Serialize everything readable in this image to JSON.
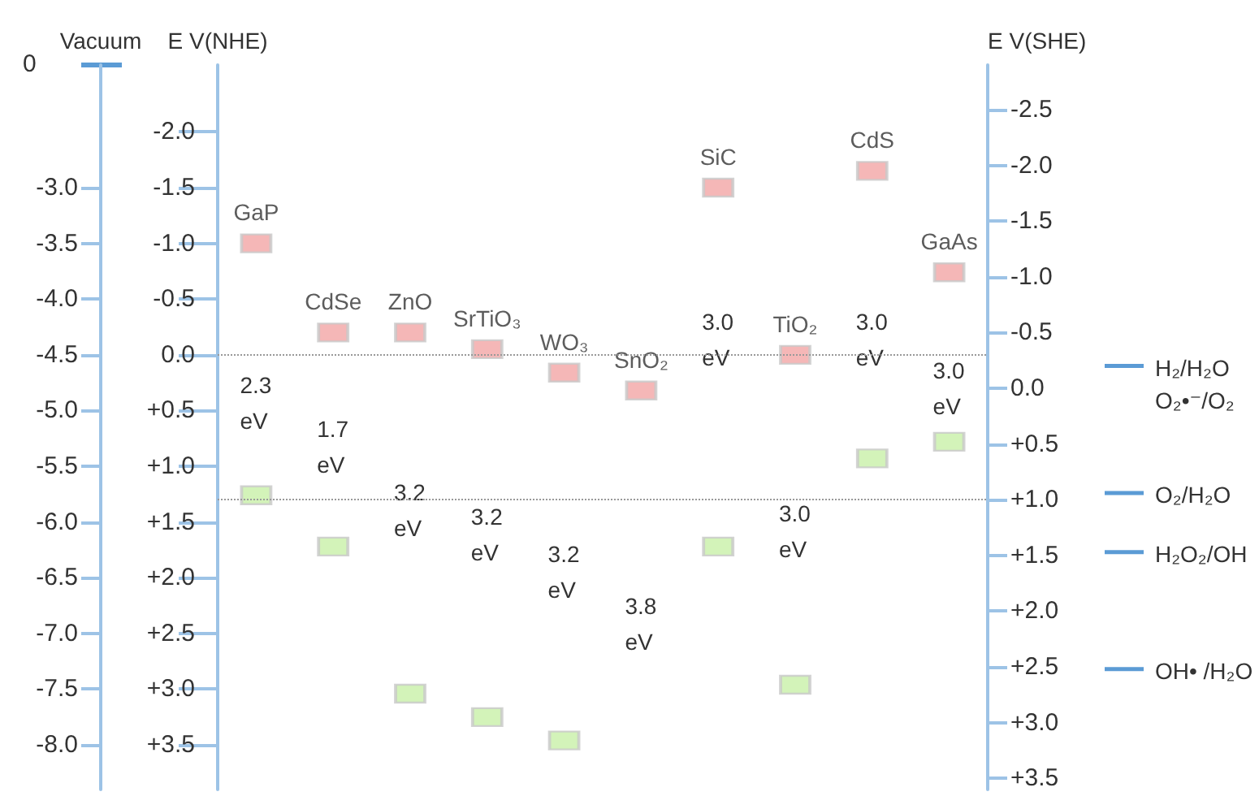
{
  "chart_data": {
    "type": "scatter",
    "marker": "square",
    "categories": [
      "GaP",
      "CdSe",
      "ZnO",
      "SrTiO₃",
      "WO₃",
      "SnO₂",
      "SiC",
      "TiO₂",
      "CdS",
      "GaAs"
    ],
    "series": [
      {
        "color": "#f2a5a5",
        "values": [
          -1.0,
          -0.2,
          -0.2,
          -0.05,
          0.16,
          0.32,
          -1.5,
          0.0,
          -1.65,
          -0.74
        ]
      },
      {
        "color": "#c8f0a8",
        "values": [
          1.26,
          1.72,
          3.04,
          3.25,
          3.46,
          null,
          1.72,
          2.96,
          0.93,
          0.78
        ]
      }
    ],
    "ylabel": "E V(NHE)",
    "y2label": "E V(SHE)",
    "y3label": "Vacuum",
    "ylim": [
      3.9,
      -2.6
    ],
    "yticks": [
      {
        "value": -2.0,
        "label": "-2.0"
      },
      {
        "value": -1.5,
        "label": "-1.5"
      },
      {
        "value": -1.0,
        "label": "-1.0"
      },
      {
        "value": -0.5,
        "label": "-0.5"
      },
      {
        "value": 0,
        "label": "0.0"
      },
      {
        "value": 0.5,
        "label": "+0.5"
      },
      {
        "value": 1.0,
        "label": "+1.0"
      },
      {
        "value": 1.5,
        "label": "+1.5"
      },
      {
        "value": 2.0,
        "label": "+2.0"
      },
      {
        "value": 2.5,
        "label": "+2.5"
      },
      {
        "value": 3.0,
        "label": "+3.0"
      },
      {
        "value": 3.5,
        "label": "+3.5"
      }
    ],
    "y2lim": [
      3.6,
      -2.9
    ],
    "y2ticks": [
      {
        "value": -2.5,
        "label": "-2.5"
      },
      {
        "value": -2.0,
        "label": "-2.0"
      },
      {
        "value": -1.5,
        "label": "-1.5"
      },
      {
        "value": -1.0,
        "label": "-1.0"
      },
      {
        "value": -0.5,
        "label": "-0.5"
      },
      {
        "value": 0,
        "label": "0.0"
      },
      {
        "value": 0.5,
        "label": "+0.5"
      },
      {
        "value": 1.0,
        "label": "+1.0"
      },
      {
        "value": 1.5,
        "label": "+1.5"
      },
      {
        "value": 2.0,
        "label": "+2.0"
      },
      {
        "value": 2.5,
        "label": "+2.5"
      },
      {
        "value": 3.0,
        "label": "+3.0"
      },
      {
        "value": 3.5,
        "label": "+3.5"
      }
    ],
    "y3lim": [
      -8.4,
      -1.9
    ],
    "y3ticks": [
      {
        "value": -3.0,
        "label": "-3.0"
      },
      {
        "value": -3.5,
        "label": "-3.5"
      },
      {
        "value": -4.0,
        "label": "-4.0"
      },
      {
        "value": -4.5,
        "label": "-4.5"
      },
      {
        "value": -5.0,
        "label": "-5.0"
      },
      {
        "value": -5.5,
        "label": "-5.5"
      },
      {
        "value": -6.0,
        "label": "-6.0"
      },
      {
        "value": -6.5,
        "label": "-6.5"
      },
      {
        "value": -7.0,
        "label": "-7.0"
      },
      {
        "value": -7.5,
        "label": "-7.5"
      },
      {
        "value": -8.0,
        "label": "-8.0"
      }
    ],
    "ref_lines": [
      {
        "axis": "y",
        "value": 0,
        "line_style": "dotted",
        "color": "#999999"
      },
      {
        "axis": "y",
        "value": 1.3,
        "line_style": "dotted",
        "color": "#999999"
      },
      {
        "axis": "y2",
        "value": -0.2,
        "label": "H₂/H₂O\nO₂•⁻/O₂",
        "color": "#5b9bd5"
      },
      {
        "axis": "y2",
        "value": 0.94,
        "label": "O₂/H₂O",
        "color": "#5b9bd5"
      },
      {
        "axis": "y2",
        "value": 1.47,
        "label": "H₂O₂/OH",
        "color": "#5b9bd5"
      },
      {
        "axis": "y2",
        "value": 2.52,
        "label": "OH• /H₂O",
        "color": "#5b9bd5"
      }
    ],
    "annotations": [
      "0",
      "2.3\neV",
      "1.7\neV",
      "3.2\neV",
      "3.2\neV",
      "3.2\neV",
      "3.8\neV",
      "3.0\neV",
      "3.0\neV",
      "3.0\neV",
      "3.0\neV"
    ]
  }
}
